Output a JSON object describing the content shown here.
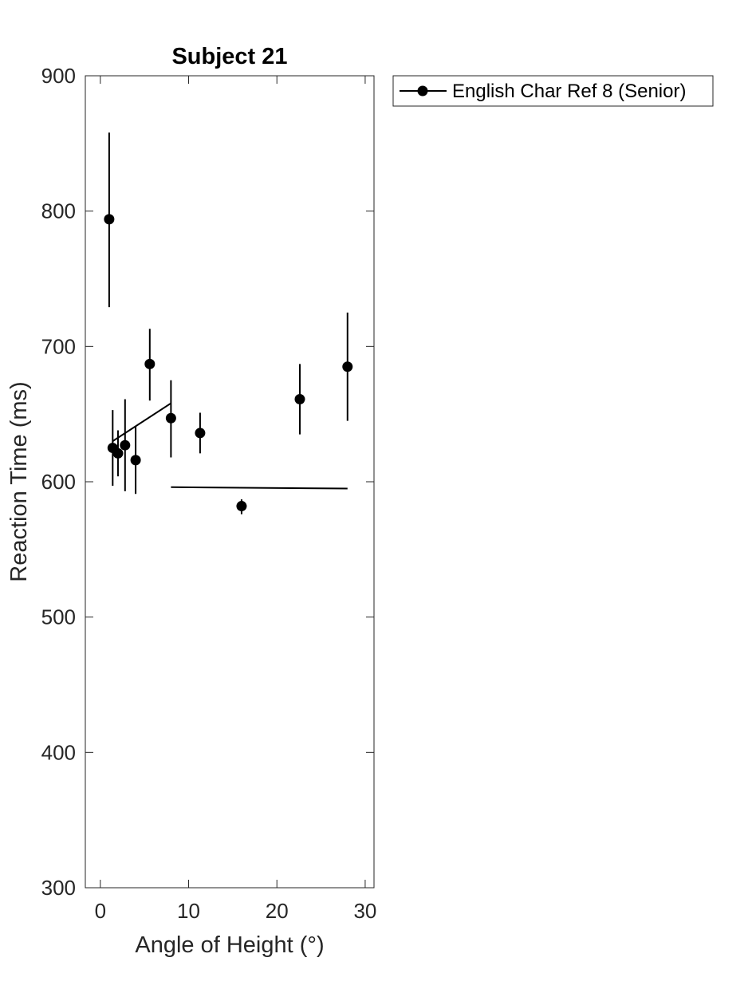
{
  "chart_data": {
    "type": "scatter",
    "title": "Subject 21",
    "xlabel": "Angle of Height (°)",
    "ylabel": "Reaction Time (ms)",
    "xlim": [
      -1.7,
      31
    ],
    "ylim": [
      300,
      900
    ],
    "xticks": [
      0,
      10,
      20,
      30
    ],
    "yticks": [
      300,
      400,
      500,
      600,
      700,
      800,
      900
    ],
    "grid": false,
    "legend_position": "outside top-right",
    "series": [
      {
        "name": "English Char Ref 8 (Senior)",
        "color": "#000000",
        "marker": "circle",
        "points": [
          {
            "x": 1.0,
            "y": 794,
            "err_low": 729,
            "err_high": 858
          },
          {
            "x": 1.4,
            "y": 625,
            "err_low": 597,
            "err_high": 653
          },
          {
            "x": 2.0,
            "y": 621,
            "err_low": 604,
            "err_high": 638
          },
          {
            "x": 2.8,
            "y": 627,
            "err_low": 593,
            "err_high": 661
          },
          {
            "x": 4.0,
            "y": 616,
            "err_low": 591,
            "err_high": 641
          },
          {
            "x": 5.6,
            "y": 687,
            "err_low": 660,
            "err_high": 713
          },
          {
            "x": 8.0,
            "y": 647,
            "err_low": 618,
            "err_high": 675
          },
          {
            "x": 11.3,
            "y": 636,
            "err_low": 621,
            "err_high": 651
          },
          {
            "x": 16.0,
            "y": 582,
            "err_low": 576,
            "err_high": 587
          },
          {
            "x": 22.6,
            "y": 661,
            "err_low": 635,
            "err_high": 687
          },
          {
            "x": 28.0,
            "y": 685,
            "err_low": 645,
            "err_high": 725
          }
        ]
      }
    ],
    "fit_lines": [
      {
        "x": [
          1.4,
          8.0
        ],
        "y": [
          630,
          658
        ]
      },
      {
        "x": [
          8.0,
          28.0
        ],
        "y": [
          596,
          595
        ]
      }
    ]
  }
}
